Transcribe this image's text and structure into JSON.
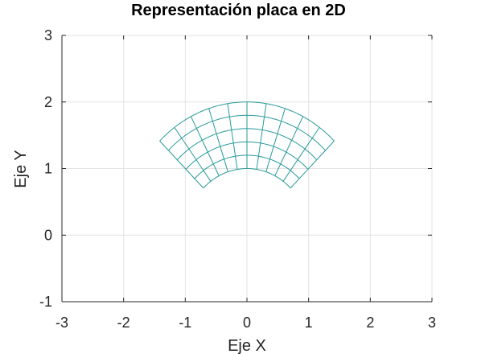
{
  "chart_data": {
    "type": "line",
    "title": "Representación placa en 2D",
    "xlabel": "Eje X",
    "ylabel": "Eje Y",
    "xlim": [
      -3,
      3
    ],
    "ylim": [
      -1,
      3
    ],
    "xticks": [
      -3,
      -2,
      -1,
      0,
      1,
      2,
      3
    ],
    "yticks": [
      -1,
      0,
      1,
      2,
      3
    ],
    "xtick_labels": [
      "-3",
      "-2",
      "-1",
      "0",
      "1",
      "2",
      "3"
    ],
    "ytick_labels": [
      "-1",
      "0",
      "1",
      "2",
      "3"
    ],
    "grid": true,
    "legend": "none",
    "series": [
      {
        "kind": "polar-mesh",
        "r_values": [
          1.0,
          1.2,
          1.4,
          1.6,
          1.8,
          2.0
        ],
        "theta_deg_values": [
          45,
          54,
          63,
          72,
          81,
          90,
          99,
          108,
          117,
          126,
          135
        ],
        "color": "#2a9a9a"
      }
    ]
  }
}
